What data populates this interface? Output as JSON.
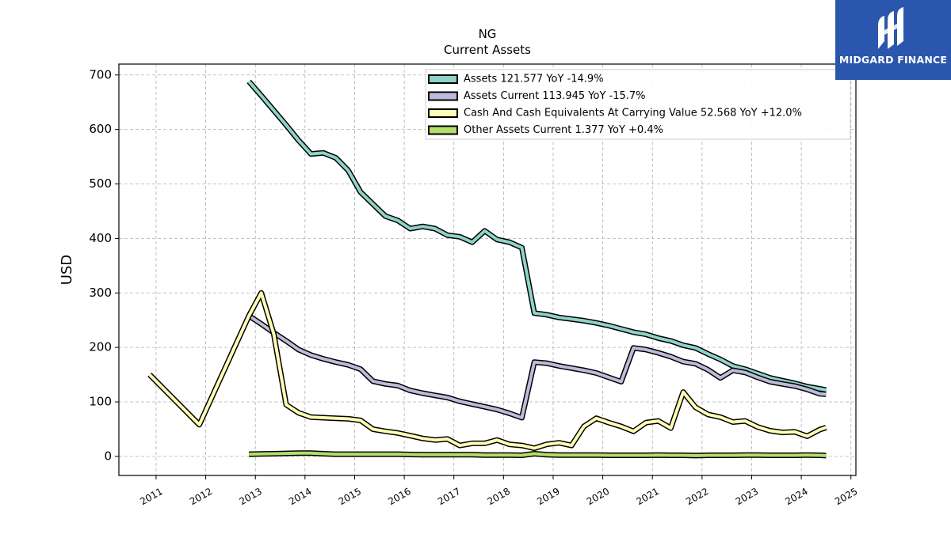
{
  "logo": {
    "text": "MIDGARD FINANCE",
    "bg_color": "#2b56ad"
  },
  "chart_data": {
    "type": "line",
    "title": "NG",
    "subtitle": "Current  Assets",
    "ylabel": "USD",
    "xlabel": "",
    "ylim": [
      -35,
      720
    ],
    "xlim": [
      2010.25,
      2025.1
    ],
    "yticks": [
      0,
      100,
      200,
      300,
      400,
      500,
      600,
      700
    ],
    "xticks": [
      "2011",
      "2012",
      "2013",
      "2014",
      "2015",
      "2016",
      "2017",
      "2018",
      "2019",
      "2020",
      "2021",
      "2022",
      "2023",
      "2024",
      "2025"
    ],
    "grid": true,
    "legend_position": "top-right",
    "series": [
      {
        "name": "Assets",
        "legend_label": "Assets  121.577 YoY -14.9%",
        "color": "#8dd3c7",
        "x": [
          2012.87,
          2013.12,
          2013.37,
          2013.62,
          2013.87,
          2014.12,
          2014.37,
          2014.62,
          2014.87,
          2015.12,
          2015.37,
          2015.62,
          2015.87,
          2016.12,
          2016.37,
          2016.62,
          2016.87,
          2017.12,
          2017.37,
          2017.62,
          2017.87,
          2018.12,
          2018.37,
          2018.62,
          2018.87,
          2019.12,
          2019.37,
          2019.62,
          2019.87,
          2020.12,
          2020.37,
          2020.62,
          2020.87,
          2021.12,
          2021.37,
          2021.62,
          2021.87,
          2022.12,
          2022.37,
          2022.62,
          2022.87,
          2023.12,
          2023.37,
          2023.62,
          2023.87,
          2024.12,
          2024.37,
          2024.5
        ],
        "values": [
          688,
          662,
          635,
          608,
          580,
          555,
          557,
          548,
          525,
          485,
          463,
          441,
          433,
          418,
          422,
          418,
          406,
          403,
          393,
          414,
          398,
          393,
          383,
          263,
          260,
          255,
          252,
          249,
          245,
          240,
          234,
          228,
          224,
          217,
          212,
          204,
          199,
          188,
          178,
          166,
          160,
          152,
          144,
          139,
          134,
          128,
          124,
          122
        ]
      },
      {
        "name": "Assets Current",
        "legend_label": "Assets Current  113.945 YoY -15.7%",
        "color": "#bebada",
        "x": [
          2012.87,
          2013.12,
          2013.37,
          2013.62,
          2013.87,
          2014.12,
          2014.37,
          2014.62,
          2014.87,
          2015.12,
          2015.37,
          2015.62,
          2015.87,
          2016.12,
          2016.37,
          2016.62,
          2016.87,
          2017.12,
          2017.37,
          2017.62,
          2017.87,
          2018.12,
          2018.37,
          2018.62,
          2018.87,
          2019.12,
          2019.37,
          2019.62,
          2019.87,
          2020.12,
          2020.37,
          2020.62,
          2020.87,
          2021.12,
          2021.37,
          2021.62,
          2021.87,
          2022.12,
          2022.37,
          2022.62,
          2022.87,
          2023.12,
          2023.37,
          2023.62,
          2023.87,
          2024.12,
          2024.37,
          2024.5
        ],
        "values": [
          258,
          243,
          227,
          212,
          196,
          186,
          179,
          173,
          168,
          160,
          138,
          133,
          130,
          121,
          116,
          112,
          108,
          101,
          96,
          91,
          86,
          79,
          71,
          173,
          171,
          166,
          162,
          158,
          153,
          145,
          137,
          199,
          196,
          190,
          183,
          174,
          170,
          159,
          144,
          158,
          154,
          145,
          137,
          133,
          129,
          123,
          115,
          114
        ]
      },
      {
        "name": "Cash And Cash Equivalents At Carrying Value",
        "legend_label": "Cash And Cash Equivalents At Carrying Value  52.568 YoY +12.0%",
        "color": "#ffffb3",
        "x": [
          2010.87,
          2011.87,
          2012.87,
          2013.12,
          2013.37,
          2013.62,
          2013.87,
          2014.12,
          2014.37,
          2014.62,
          2014.87,
          2015.12,
          2015.37,
          2015.62,
          2015.87,
          2016.12,
          2016.37,
          2016.62,
          2016.87,
          2017.12,
          2017.37,
          2017.62,
          2017.87,
          2018.12,
          2018.37,
          2018.62,
          2018.87,
          2019.12,
          2019.37,
          2019.62,
          2019.87,
          2020.12,
          2020.37,
          2020.62,
          2020.87,
          2021.12,
          2021.37,
          2021.62,
          2021.87,
          2022.12,
          2022.37,
          2022.62,
          2022.87,
          2023.12,
          2023.37,
          2023.62,
          2023.87,
          2024.12,
          2024.37,
          2024.5
        ],
        "values": [
          150,
          58,
          258,
          300,
          225,
          95,
          80,
          72,
          71,
          70,
          69,
          66,
          50,
          46,
          43,
          38,
          33,
          30,
          32,
          20,
          24,
          24,
          30,
          22,
          20,
          15,
          22,
          25,
          20,
          55,
          70,
          62,
          55,
          46,
          62,
          65,
          52,
          118,
          90,
          77,
          72,
          63,
          65,
          54,
          47,
          44,
          45,
          37,
          49,
          53
        ]
      },
      {
        "name": "Other Assets Current",
        "legend_label": "Other Assets Current  1.377 YoY +0.4%",
        "color": "#b3de69",
        "x": [
          2012.87,
          2013.12,
          2013.37,
          2013.62,
          2013.87,
          2014.12,
          2014.37,
          2014.62,
          2014.87,
          2015.12,
          2015.37,
          2015.62,
          2015.87,
          2016.12,
          2016.37,
          2016.62,
          2016.87,
          2017.12,
          2017.37,
          2017.62,
          2017.87,
          2018.12,
          2018.37,
          2018.62,
          2018.87,
          2019.12,
          2019.37,
          2019.62,
          2019.87,
          2020.12,
          2020.37,
          2020.62,
          2020.87,
          2021.12,
          2021.37,
          2021.62,
          2021.87,
          2022.12,
          2022.37,
          2022.62,
          2022.87,
          2023.12,
          2023.37,
          2023.62,
          2023.87,
          2024.12,
          2024.37,
          2024.5
        ],
        "values": [
          4,
          4.5,
          5,
          5.5,
          6,
          6,
          5,
          4,
          4,
          4,
          4,
          4,
          4,
          3.5,
          3,
          3,
          3,
          3,
          3,
          2.5,
          2.5,
          2.5,
          2,
          5,
          3,
          2.5,
          2.5,
          2.5,
          2.5,
          2,
          2,
          2,
          2,
          2.5,
          2,
          2,
          1.5,
          2,
          2,
          2,
          2.5,
          2.5,
          2,
          2,
          2,
          2.5,
          2,
          1.4
        ]
      }
    ]
  }
}
